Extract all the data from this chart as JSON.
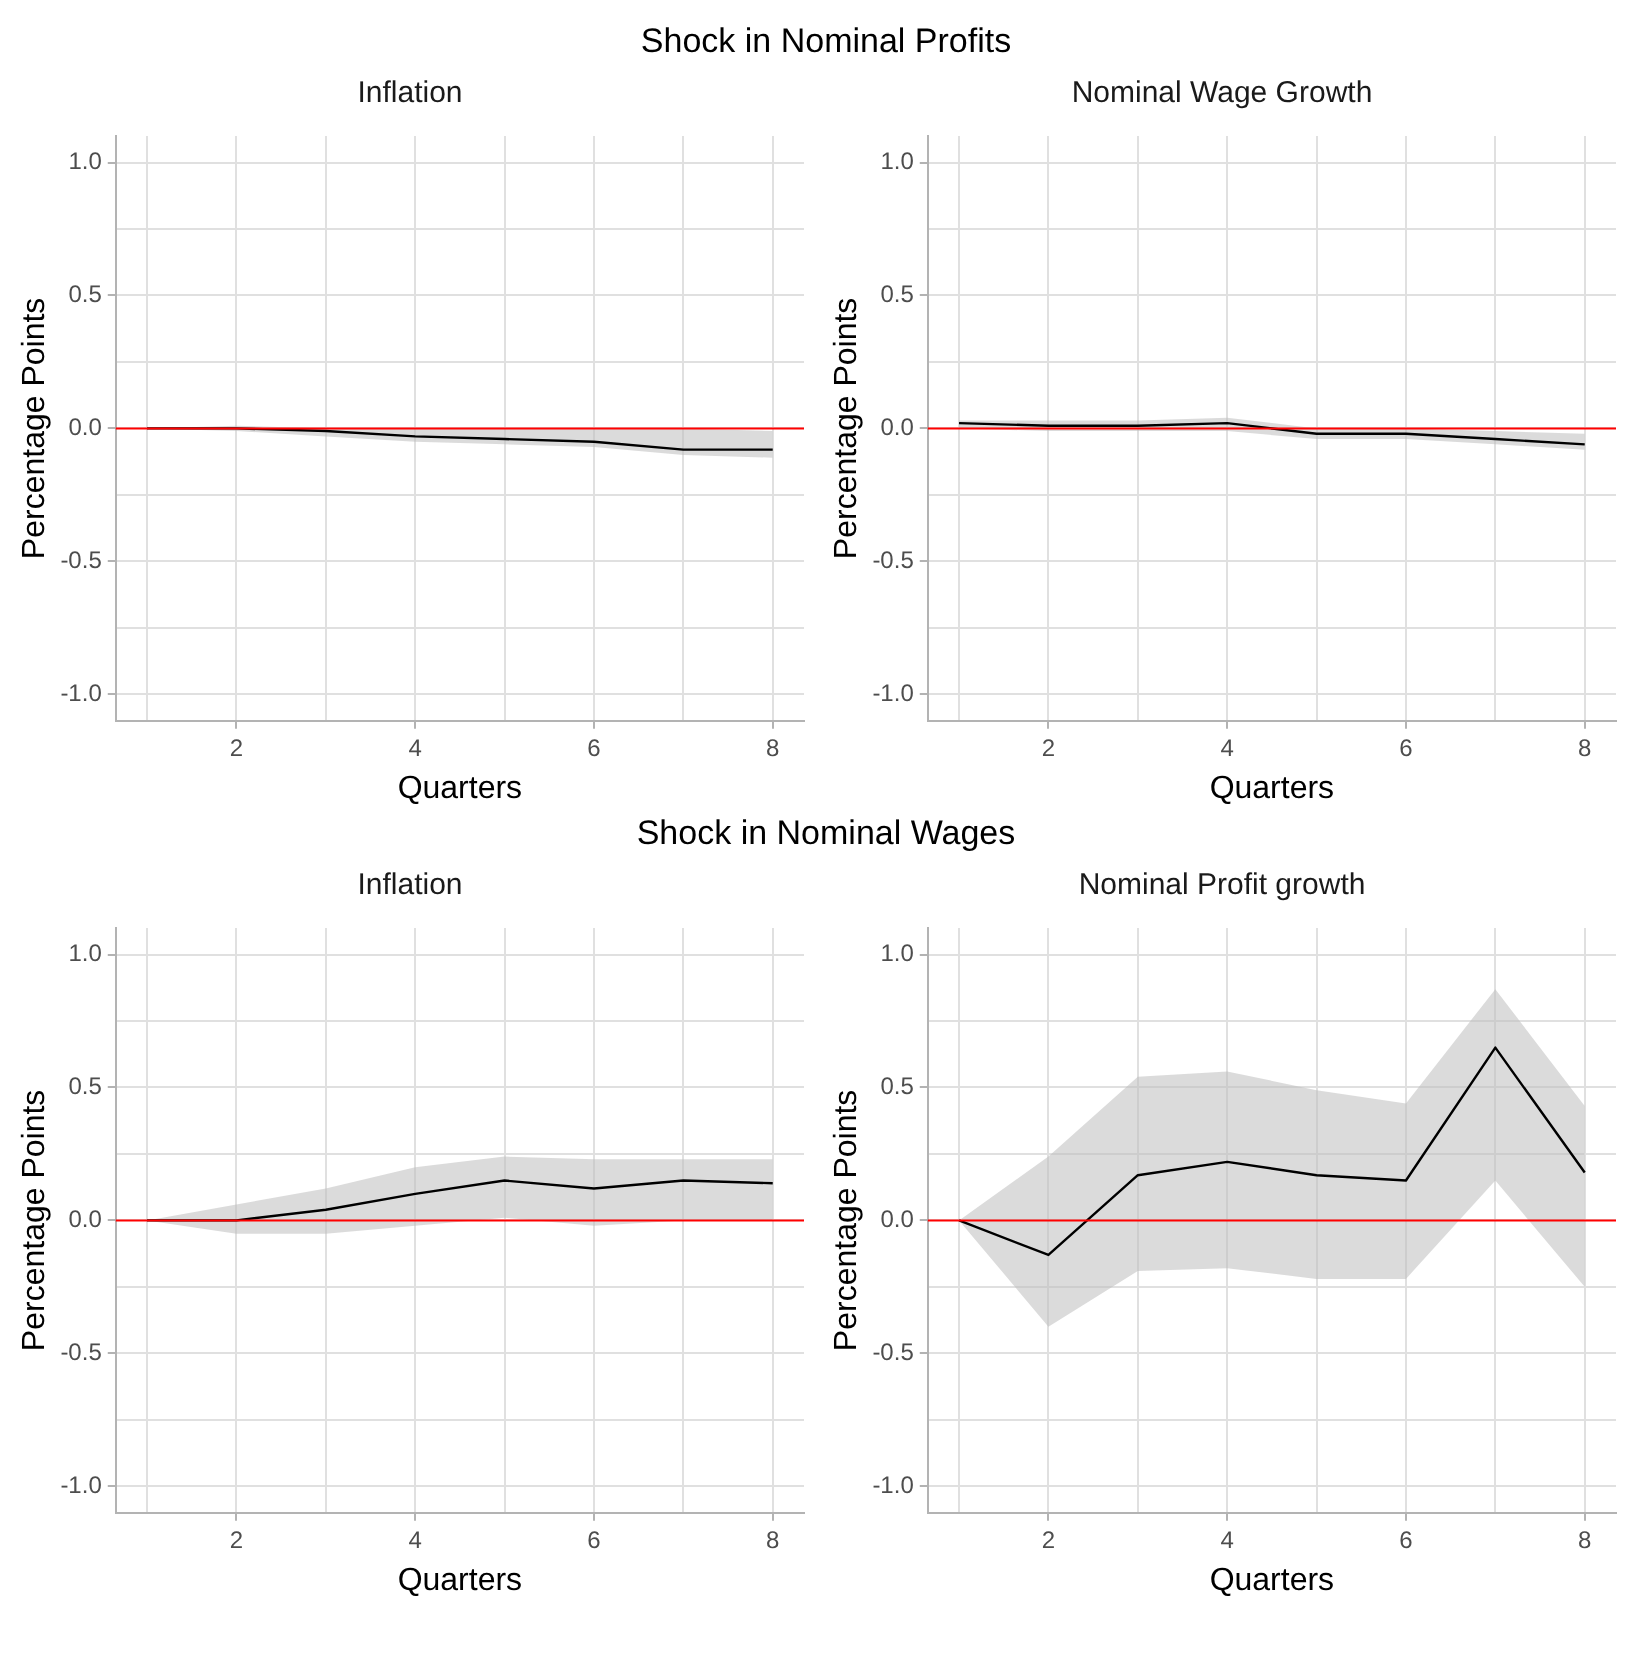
{
  "chart_data": [
    {
      "type": "line",
      "title": "Inflation",
      "annotations": [
        "Shock in Nominal Profits"
      ],
      "xlabel": "Quarters",
      "ylabel": "Percentage Points",
      "x": [
        1,
        2,
        3,
        4,
        5,
        6,
        7,
        8
      ],
      "xlim": [
        0.65,
        8.35
      ],
      "ylim": [
        -1.1,
        1.1
      ],
      "xticks": [
        {
          "value": 1,
          "label": null
        },
        2,
        {
          "value": 3,
          "label": null
        },
        4,
        {
          "value": 5,
          "label": null
        },
        6,
        {
          "value": 7,
          "label": null
        },
        8
      ],
      "yticks": [
        {
          "value": -1,
          "label": "-1.0"
        },
        {
          "value": -0.75,
          "label": null
        },
        {
          "value": -0.5,
          "label": "-0.5"
        },
        {
          "value": -0.25,
          "label": null
        },
        {
          "value": 0,
          "label": "0.0"
        },
        {
          "value": 0.25,
          "label": null
        },
        {
          "value": 0.5,
          "label": "0.5"
        },
        {
          "value": 0.75,
          "label": null
        },
        {
          "value": 1,
          "label": "1.0"
        }
      ],
      "grid": true,
      "legend": false,
      "marker": "none",
      "line_style": "solid",
      "ref_lines": [
        {
          "axis": "y",
          "value": 0,
          "color": "#ff0000"
        }
      ],
      "series": [
        {
          "color": "#000000",
          "values": [
            0,
            0,
            -0.01,
            -0.03,
            -0.04,
            -0.05,
            -0.08,
            -0.08
          ],
          "lower": [
            0,
            -0.01,
            -0.03,
            -0.05,
            -0.06,
            -0.07,
            -0.1,
            -0.11
          ],
          "upper": [
            0,
            0.01,
            0,
            0,
            0,
            0,
            0,
            -0.01
          ]
        }
      ]
    },
    {
      "type": "line",
      "title": "Nominal Wage Growth",
      "xlabel": "Quarters",
      "ylabel": "Percentage Points",
      "x": [
        1,
        2,
        3,
        4,
        5,
        6,
        7,
        8
      ],
      "xlim": [
        0.65,
        8.35
      ],
      "ylim": [
        -1.1,
        1.1
      ],
      "xticks": [
        {
          "value": 1,
          "label": null
        },
        2,
        {
          "value": 3,
          "label": null
        },
        4,
        {
          "value": 5,
          "label": null
        },
        6,
        {
          "value": 7,
          "label": null
        },
        8
      ],
      "yticks": [
        {
          "value": -1,
          "label": "-1.0"
        },
        {
          "value": -0.75,
          "label": null
        },
        {
          "value": -0.5,
          "label": "-0.5"
        },
        {
          "value": -0.25,
          "label": null
        },
        {
          "value": 0,
          "label": "0.0"
        },
        {
          "value": 0.25,
          "label": null
        },
        {
          "value": 0.5,
          "label": "0.5"
        },
        {
          "value": 0.75,
          "label": null
        },
        {
          "value": 1,
          "label": "1.0"
        }
      ],
      "grid": true,
      "legend": false,
      "marker": "none",
      "line_style": "solid",
      "ref_lines": [
        {
          "axis": "y",
          "value": 0,
          "color": "#ff0000"
        }
      ],
      "series": [
        {
          "color": "#000000",
          "values": [
            0.02,
            0.01,
            0.01,
            0.02,
            -0.02,
            -0.02,
            -0.04,
            -0.06
          ],
          "lower": [
            0,
            -0.01,
            -0.01,
            -0.01,
            -0.04,
            -0.04,
            -0.06,
            -0.08
          ],
          "upper": [
            0.03,
            0.03,
            0.03,
            0.04,
            0,
            0,
            -0.01,
            -0.02
          ]
        }
      ]
    },
    {
      "type": "line",
      "title": "Inflation",
      "annotations": [
        "Shock in Nominal Wages"
      ],
      "xlabel": "Quarters",
      "ylabel": "Percentage Points",
      "x": [
        1,
        2,
        3,
        4,
        5,
        6,
        7,
        8
      ],
      "xlim": [
        0.65,
        8.35
      ],
      "ylim": [
        -1.1,
        1.1
      ],
      "xticks": [
        {
          "value": 1,
          "label": null
        },
        2,
        {
          "value": 3,
          "label": null
        },
        4,
        {
          "value": 5,
          "label": null
        },
        6,
        {
          "value": 7,
          "label": null
        },
        8
      ],
      "yticks": [
        {
          "value": -1,
          "label": "-1.0"
        },
        {
          "value": -0.75,
          "label": null
        },
        {
          "value": -0.5,
          "label": "-0.5"
        },
        {
          "value": -0.25,
          "label": null
        },
        {
          "value": 0,
          "label": "0.0"
        },
        {
          "value": 0.25,
          "label": null
        },
        {
          "value": 0.5,
          "label": "0.5"
        },
        {
          "value": 0.75,
          "label": null
        },
        {
          "value": 1,
          "label": "1.0"
        }
      ],
      "grid": true,
      "legend": false,
      "marker": "none",
      "line_style": "solid",
      "ref_lines": [
        {
          "axis": "y",
          "value": 0,
          "color": "#ff0000"
        }
      ],
      "series": [
        {
          "color": "#000000",
          "values": [
            0,
            0,
            0.04,
            0.1,
            0.15,
            0.12,
            0.15,
            0.14
          ],
          "lower": [
            0,
            -0.05,
            -0.05,
            -0.02,
            0.01,
            -0.02,
            0,
            0
          ],
          "upper": [
            0,
            0.06,
            0.12,
            0.2,
            0.24,
            0.23,
            0.23,
            0.23
          ]
        }
      ]
    },
    {
      "type": "line",
      "title": "Nominal Profit growth",
      "xlabel": "Quarters",
      "ylabel": "Percentage Points",
      "x": [
        1,
        2,
        3,
        4,
        5,
        6,
        7,
        8
      ],
      "xlim": [
        0.65,
        8.35
      ],
      "ylim": [
        -1.1,
        1.1
      ],
      "xticks": [
        {
          "value": 1,
          "label": null
        },
        2,
        {
          "value": 3,
          "label": null
        },
        4,
        {
          "value": 5,
          "label": null
        },
        6,
        {
          "value": 7,
          "label": null
        },
        8
      ],
      "yticks": [
        {
          "value": -1,
          "label": "-1.0"
        },
        {
          "value": -0.75,
          "label": null
        },
        {
          "value": -0.5,
          "label": "-0.5"
        },
        {
          "value": -0.25,
          "label": null
        },
        {
          "value": 0,
          "label": "0.0"
        },
        {
          "value": 0.25,
          "label": null
        },
        {
          "value": 0.5,
          "label": "0.5"
        },
        {
          "value": 0.75,
          "label": null
        },
        {
          "value": 1,
          "label": "1.0"
        }
      ],
      "grid": true,
      "legend": false,
      "marker": "none",
      "line_style": "solid",
      "ref_lines": [
        {
          "axis": "y",
          "value": 0,
          "color": "#ff0000"
        }
      ],
      "series": [
        {
          "color": "#000000",
          "values": [
            0,
            -0.13,
            0.17,
            0.22,
            0.17,
            0.15,
            0.65,
            0.18
          ],
          "lower": [
            0,
            -0.4,
            -0.19,
            -0.18,
            -0.22,
            -0.22,
            0.15,
            -0.25
          ],
          "upper": [
            0,
            0.24,
            0.54,
            0.56,
            0.49,
            0.44,
            0.87,
            0.43
          ]
        }
      ]
    }
  ]
}
